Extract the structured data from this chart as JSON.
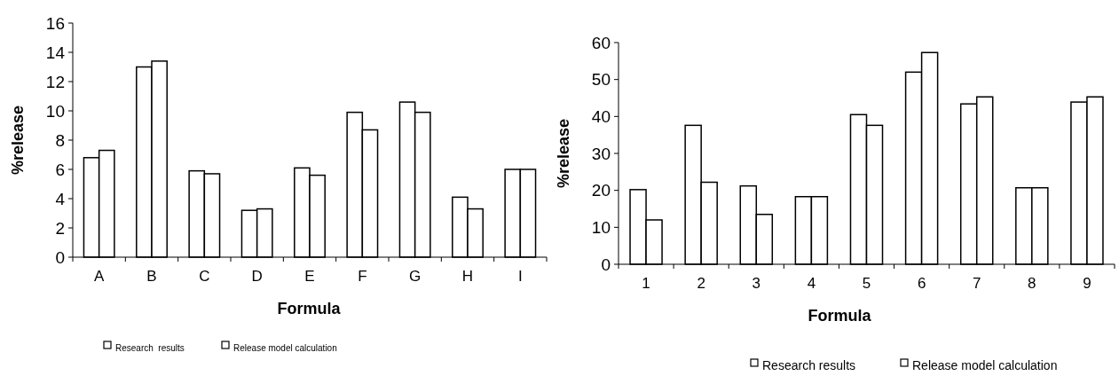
{
  "chart_data": [
    {
      "type": "bar",
      "xlabel": "Formula",
      "ylabel": "%release",
      "categories": [
        "A",
        "B",
        "C",
        "D",
        "E",
        "F",
        "G",
        "H",
        "I"
      ],
      "ylim": [
        0,
        16
      ],
      "yticks": [
        0,
        2,
        4,
        6,
        8,
        10,
        12,
        14,
        16
      ],
      "grid": false,
      "legend": "bottom",
      "series": [
        {
          "name": "Research  results",
          "color": "#ffffff",
          "values": [
            6.8,
            13,
            5.9,
            3.2,
            6.1,
            9.9,
            10.6,
            4.1,
            6.0
          ]
        },
        {
          "name": "Release model calculation",
          "color": "#ffffff",
          "values": [
            7.3,
            13.4,
            5.7,
            3.3,
            5.6,
            8.7,
            9.9,
            3.3,
            6.0
          ]
        }
      ]
    },
    {
      "type": "bar",
      "xlabel": "Formula",
      "ylabel": "%release",
      "categories": [
        "1",
        "2",
        "3",
        "4",
        "5",
        "6",
        "7",
        "8",
        "9"
      ],
      "ylim": [
        0,
        60
      ],
      "yticks": [
        0,
        10,
        20,
        30,
        40,
        50,
        60
      ],
      "grid": false,
      "legend": "bottom",
      "series": [
        {
          "name": "Research results",
          "color": "#ffffff",
          "values": [
            20.2,
            37.6,
            21.2,
            18.3,
            40.5,
            52,
            43.4,
            20.7,
            43.9
          ]
        },
        {
          "name": "Release model calculation",
          "color": "#ffffff",
          "values": [
            12,
            22.2,
            13.5,
            18.3,
            37.6,
            57.3,
            45.3,
            20.7,
            45.3
          ]
        }
      ]
    }
  ]
}
